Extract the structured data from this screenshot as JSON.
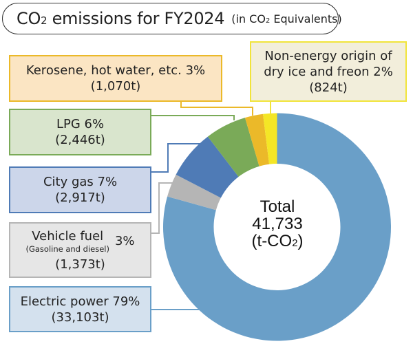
{
  "header": {
    "title_prefix": "CO",
    "title_sub": "2",
    "title_rest": " emissions for FY2024",
    "paren_prefix": "(in CO",
    "paren_sub": "2",
    "paren_rest": " Equivalents)"
  },
  "center": {
    "line1": "Total",
    "line2": "41,733",
    "line3_prefix": "(t-CO",
    "line3_sub": "2",
    "line3_suffix": ")"
  },
  "labels": {
    "non_energy": {
      "line1": "Non-energy origin of",
      "line2": "dry ice and freon 2%",
      "line3": "(824t)"
    },
    "kerosene": {
      "line1": "Kerosene, hot water, etc. 3%",
      "line2": "(1,070t)"
    },
    "lpg": {
      "line1": "LPG 6%",
      "line2": "(2,446t)"
    },
    "city_gas": {
      "line1": "City gas 7%",
      "line2": "(2,917t)"
    },
    "vehicle": {
      "line1": "Vehicle fuel",
      "line2": "(Gasoline and diesel)",
      "pct": "3%",
      "line3": "(1,373t)"
    },
    "electric": {
      "line1": "Electric power 79%",
      "line2": "(33,103t)"
    }
  },
  "chart_data": {
    "type": "pie",
    "subtype": "donut",
    "title": "CO2 emissions for FY2024 (in CO2 Equivalents)",
    "unit": "t-CO2",
    "total": 41733,
    "center_text": "Total 41,733 (t-CO2)",
    "start_angle_deg": 0,
    "direction": "clockwise",
    "slices": [
      {
        "name": "Electric power",
        "value": 33103,
        "percent": 79,
        "color": "#6a9fc8"
      },
      {
        "name": "Vehicle fuel (Gasoline and diesel)",
        "value": 1373,
        "percent": 3,
        "color": "#b5b5b5"
      },
      {
        "name": "City gas",
        "value": 2917,
        "percent": 7,
        "color": "#4f7bb6"
      },
      {
        "name": "LPG",
        "value": 2446,
        "percent": 6,
        "color": "#7aaa58"
      },
      {
        "name": "Kerosene, hot water, etc.",
        "value": 1070,
        "percent": 3,
        "color": "#ebb929"
      },
      {
        "name": "Non-energy origin of dry ice and freon",
        "value": 824,
        "percent": 2,
        "color": "#f4e626"
      }
    ],
    "legend_position": "callout boxes"
  },
  "box_styles": {
    "non_energy": {
      "bg": "#f2eedb",
      "border": "#f1e43a"
    },
    "kerosene": {
      "bg": "#fbe5c3",
      "border": "#ebb929"
    },
    "lpg": {
      "bg": "#d9e5cd",
      "border": "#7aaa58"
    },
    "city_gas": {
      "bg": "#ccd6ea",
      "border": "#4f7bb6"
    },
    "vehicle": {
      "bg": "#e6e6e6",
      "border": "#b5b5b5"
    },
    "electric": {
      "bg": "#d4e1ee",
      "border": "#6a9fc8"
    }
  }
}
